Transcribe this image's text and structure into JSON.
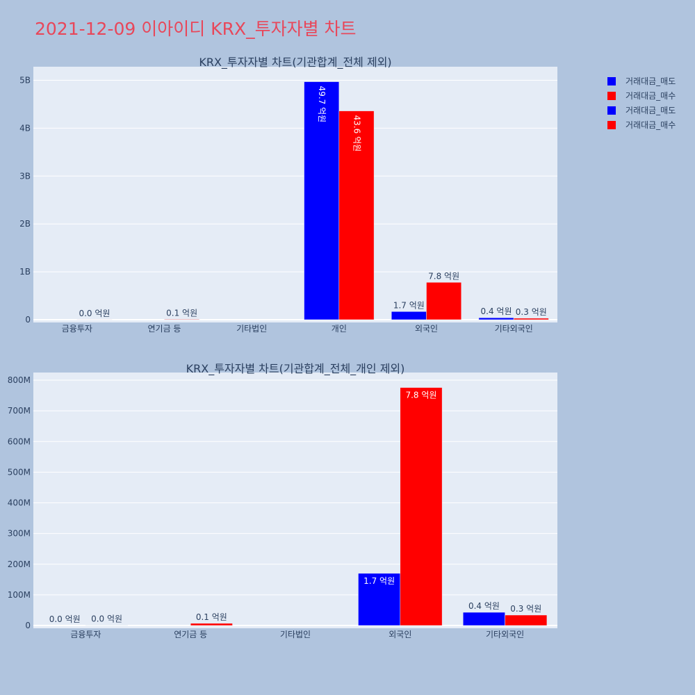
{
  "page": {
    "title": "2021-12-09 이아이디 KRX_투자자별 차트"
  },
  "legend": [
    {
      "label": "거래대금_매도",
      "color": "#0000ff"
    },
    {
      "label": "거래대금_매수",
      "color": "#ff0000"
    },
    {
      "label": "거래대금_매도",
      "color": "#0000ff"
    },
    {
      "label": "거래대금_매수",
      "color": "#ff0000"
    }
  ],
  "chart_data": [
    {
      "type": "bar",
      "title": "KRX_투자자별 차트(기관합계_전체 제외)",
      "categories": [
        "금융투자",
        "연기금 등",
        "기타법인",
        "개인",
        "외국인",
        "기타외국인"
      ],
      "ylim": [
        0,
        5250000000
      ],
      "ytick_values": [
        0,
        1000000000,
        2000000000,
        3000000000,
        4000000000,
        5000000000
      ],
      "yticks": [
        "0",
        "1B",
        "2B",
        "3B",
        "4B",
        "5B"
      ],
      "series": [
        {
          "name": "거래대금_매도",
          "color": "#0000ff",
          "values": [
            0,
            0,
            0,
            4970000000,
            170000000,
            40000000
          ],
          "labels": [
            "",
            "",
            "",
            "49.7 억원",
            "1.7 억원",
            "0.4 억원"
          ]
        },
        {
          "name": "거래대금_매수",
          "color": "#ff0000",
          "values": [
            1000000,
            10000000,
            0,
            4360000000,
            780000000,
            30000000
          ],
          "labels": [
            "0.0 억원",
            "0.1 억원",
            "",
            "43.6 억원",
            "7.8 억원",
            "0.3 억원"
          ]
        }
      ],
      "grid": true,
      "legend": "right"
    },
    {
      "type": "bar",
      "title": "KRX_투자자별 차트(기관합계_전체_개인 제외)",
      "categories": [
        "금융투자",
        "연기금 등",
        "기타법인",
        "외국인",
        "기타외국인"
      ],
      "ylim": [
        0,
        820000000
      ],
      "ytick_values": [
        0,
        100000000,
        200000000,
        300000000,
        400000000,
        500000000,
        600000000,
        700000000,
        800000000
      ],
      "yticks": [
        "0",
        "100M",
        "200M",
        "300M",
        "400M",
        "500M",
        "600M",
        "700M",
        "800M"
      ],
      "series": [
        {
          "name": "거래대금_매도",
          "color": "#0000ff",
          "values": [
            0,
            0,
            0,
            170000000,
            43000000
          ],
          "labels": [
            "0.0 억원",
            "",
            "",
            "1.7 억원",
            "0.4 억원"
          ]
        },
        {
          "name": "거래대금_매수",
          "color": "#ff0000",
          "values": [
            1000000,
            7000000,
            0,
            776000000,
            34000000
          ],
          "labels": [
            "0.0 억원",
            "0.1 억원",
            "",
            "7.8 억원",
            "0.3 억원"
          ]
        }
      ],
      "grid": true,
      "legend": "right"
    }
  ]
}
